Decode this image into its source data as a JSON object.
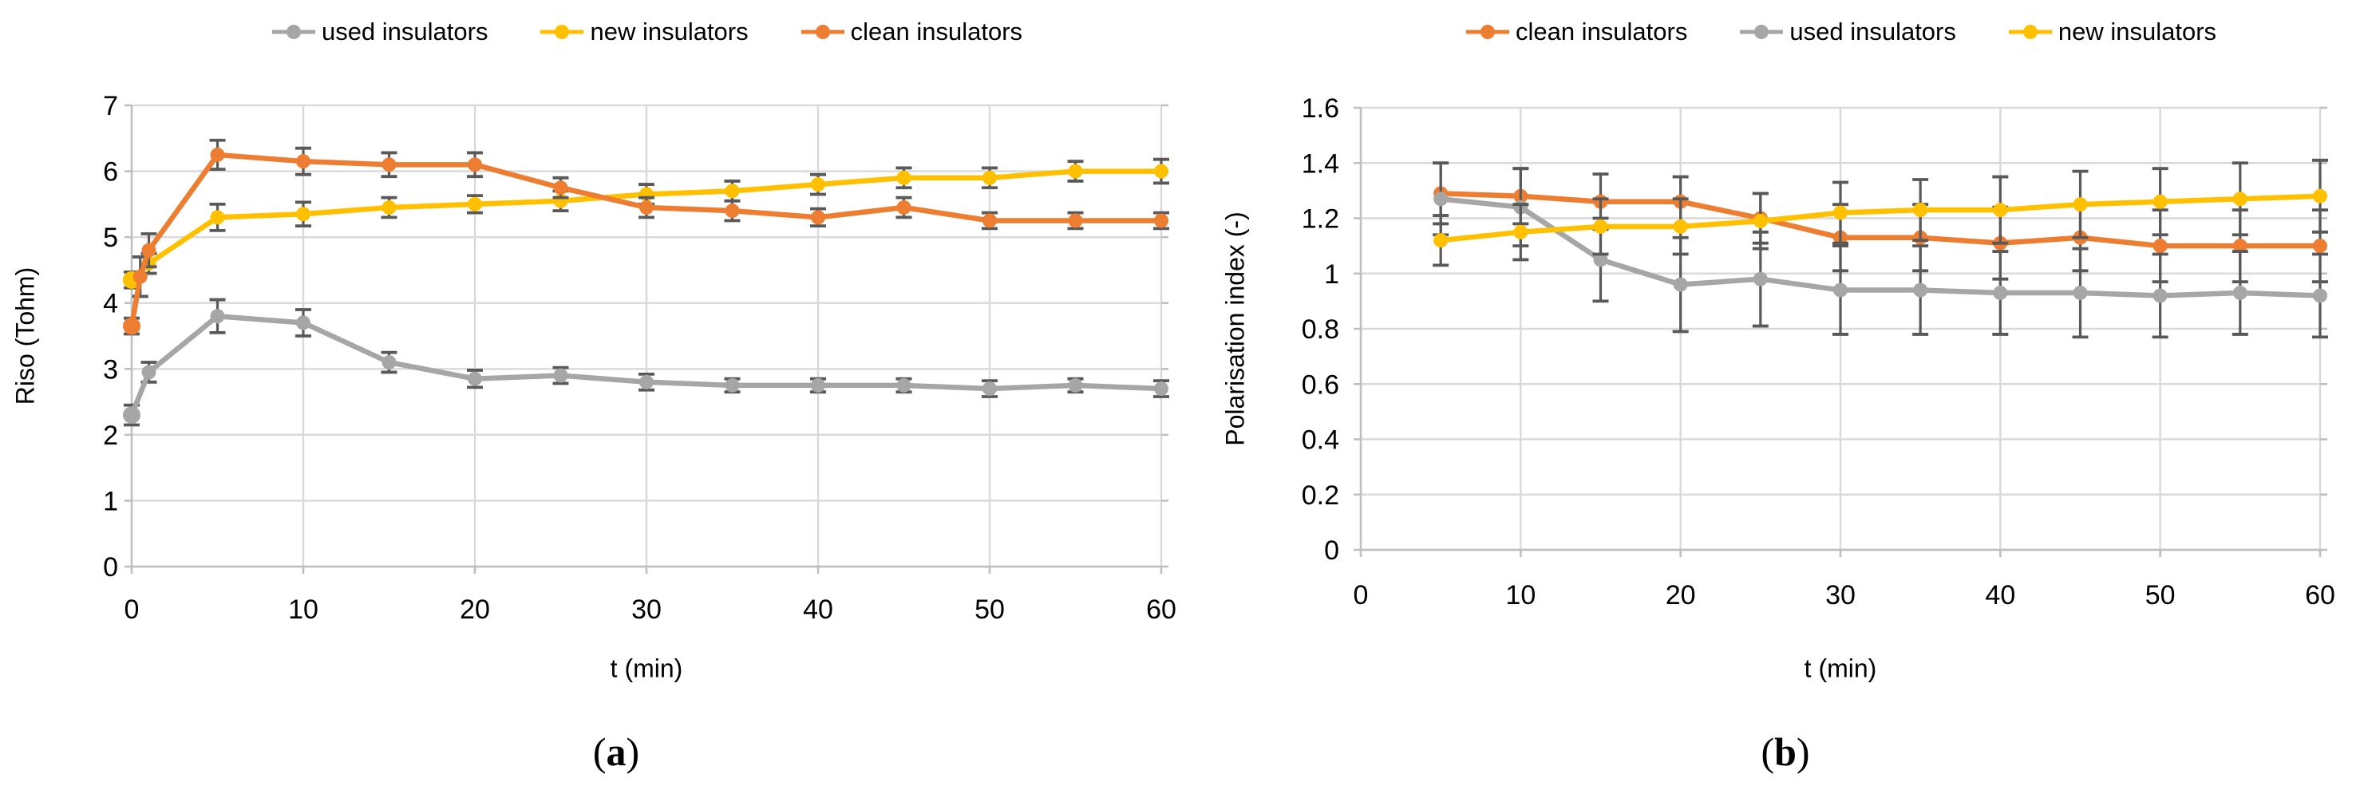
{
  "page": {
    "background": "#ffffff"
  },
  "colors": {
    "series_used": "#A6A6A6",
    "series_new": "#FFC000",
    "series_clean": "#ED7D31",
    "error_bar": "#595959",
    "gridline": "#D9D9D9",
    "axis_line": "#BFBFBF",
    "text": "#000000"
  },
  "chart_data": [
    {
      "type": "line",
      "id": "a",
      "caption": {
        "open": "(",
        "letter": "a",
        "close": ")"
      },
      "xlabel": "t (min)",
      "ylabel": "Riso (Tohm)",
      "xlim": [
        0,
        60
      ],
      "ylim": [
        0,
        7
      ],
      "xtick_values": [
        0,
        10,
        20,
        30,
        40,
        50,
        60
      ],
      "xtick_labels": [
        "0",
        "10",
        "20",
        "30",
        "40",
        "50",
        "60"
      ],
      "ytick_values": [
        0,
        1,
        2,
        3,
        4,
        5,
        6,
        7
      ],
      "ytick_labels": [
        "0",
        "1",
        "2",
        "3",
        "4",
        "5",
        "6",
        "7"
      ],
      "grid": true,
      "legend_position": "top-center",
      "legend": [
        {
          "label": "used insulators",
          "color": "#A6A6A6"
        },
        {
          "label": "new insulators",
          "color": "#FFC000"
        },
        {
          "label": "clean insulators",
          "color": "#ED7D31"
        }
      ],
      "series": [
        {
          "name": "used insulators",
          "color": "#A6A6A6",
          "x": [
            0,
            1,
            5,
            10,
            15,
            20,
            25,
            30,
            35,
            40,
            45,
            50,
            55,
            60
          ],
          "y": [
            2.3,
            2.95,
            3.8,
            3.7,
            3.1,
            2.85,
            2.9,
            2.8,
            2.75,
            2.75,
            2.75,
            2.7,
            2.75,
            2.7
          ],
          "err": [
            0.15,
            0.15,
            0.25,
            0.2,
            0.15,
            0.13,
            0.12,
            0.12,
            0.1,
            0.1,
            0.1,
            0.12,
            0.1,
            0.12
          ]
        },
        {
          "name": "new insulators",
          "color": "#FFC000",
          "x": [
            0,
            1,
            5,
            10,
            15,
            20,
            25,
            30,
            35,
            40,
            45,
            50,
            55,
            60
          ],
          "y": [
            4.35,
            4.6,
            5.3,
            5.35,
            5.45,
            5.5,
            5.55,
            5.65,
            5.7,
            5.8,
            5.9,
            5.9,
            6.0,
            6.0
          ],
          "err": [
            0.12,
            0.15,
            0.2,
            0.18,
            0.15,
            0.13,
            0.15,
            0.15,
            0.15,
            0.15,
            0.15,
            0.15,
            0.15,
            0.18
          ]
        },
        {
          "name": "clean insulators",
          "color": "#ED7D31",
          "x": [
            0,
            0.5,
            1,
            5,
            10,
            15,
            20,
            25,
            30,
            35,
            40,
            45,
            50,
            55,
            60
          ],
          "y": [
            3.65,
            4.4,
            4.8,
            6.25,
            6.15,
            6.1,
            6.1,
            5.75,
            5.45,
            5.4,
            5.3,
            5.45,
            5.25,
            5.25,
            5.25
          ],
          "err": [
            0.12,
            0.3,
            0.25,
            0.22,
            0.2,
            0.18,
            0.18,
            0.15,
            0.15,
            0.15,
            0.13,
            0.15,
            0.12,
            0.12,
            0.12
          ]
        }
      ]
    },
    {
      "type": "line",
      "id": "b",
      "caption": {
        "open": "(",
        "letter": "b",
        "close": ")"
      },
      "xlabel": "t (min)",
      "ylabel": "Polarisation index (-)",
      "xlim": [
        0,
        60
      ],
      "ylim": [
        0,
        1.6
      ],
      "xtick_values": [
        0,
        10,
        20,
        30,
        40,
        50,
        60
      ],
      "xtick_labels": [
        "0",
        "10",
        "20",
        "30",
        "40",
        "50",
        "60"
      ],
      "ytick_values": [
        0,
        0.2,
        0.4,
        0.6,
        0.8,
        1.0,
        1.2,
        1.4,
        1.6
      ],
      "ytick_labels": [
        "0",
        "0.2",
        "0.4",
        "0.6",
        "0.8",
        "1",
        "1.2",
        "1.4",
        "1.6"
      ],
      "grid": true,
      "legend_position": "top-center",
      "legend": [
        {
          "label": "clean insulators",
          "color": "#ED7D31"
        },
        {
          "label": "used insulators",
          "color": "#A6A6A6"
        },
        {
          "label": "new insulators",
          "color": "#FFC000"
        }
      ],
      "series": [
        {
          "name": "clean insulators",
          "color": "#ED7D31",
          "x": [
            5,
            10,
            15,
            20,
            25,
            30,
            35,
            40,
            45,
            50,
            55,
            60
          ],
          "y": [
            1.29,
            1.28,
            1.26,
            1.26,
            1.2,
            1.13,
            1.13,
            1.11,
            1.13,
            1.1,
            1.1,
            1.1
          ],
          "err": [
            0.11,
            0.1,
            0.1,
            0.09,
            0.09,
            0.12,
            0.12,
            0.13,
            0.12,
            0.13,
            0.13,
            0.13
          ]
        },
        {
          "name": "used insulators",
          "color": "#A6A6A6",
          "x": [
            5,
            10,
            15,
            20,
            25,
            30,
            35,
            40,
            45,
            50,
            55,
            60
          ],
          "y": [
            1.27,
            1.24,
            1.05,
            0.96,
            0.98,
            0.94,
            0.94,
            0.93,
            0.93,
            0.92,
            0.93,
            0.92
          ],
          "err": [
            0.13,
            0.14,
            0.15,
            0.17,
            0.17,
            0.16,
            0.16,
            0.15,
            0.16,
            0.15,
            0.15,
            0.15
          ]
        },
        {
          "name": "new insulators",
          "color": "#FFC000",
          "x": [
            5,
            10,
            15,
            20,
            25,
            30,
            35,
            40,
            45,
            50,
            55,
            60
          ],
          "y": [
            1.12,
            1.15,
            1.17,
            1.17,
            1.19,
            1.22,
            1.23,
            1.23,
            1.25,
            1.26,
            1.27,
            1.28
          ],
          "err": [
            0.09,
            0.1,
            0.1,
            0.1,
            0.1,
            0.11,
            0.11,
            0.12,
            0.12,
            0.12,
            0.13,
            0.13
          ]
        }
      ]
    }
  ]
}
